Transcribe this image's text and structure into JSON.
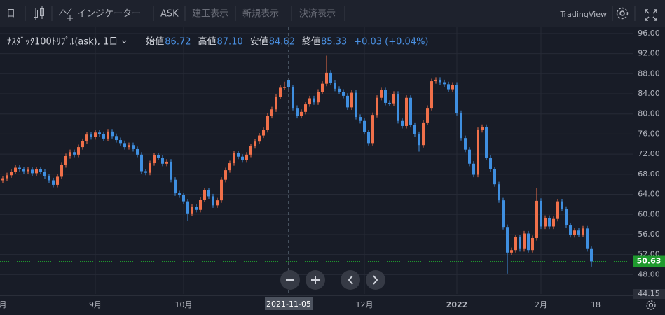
{
  "toolbar": {
    "interval": "日",
    "indicators": "インジケーター",
    "price_side": "ASK",
    "buttons": [
      "建玉表示",
      "新規表示",
      "決済表示"
    ],
    "brand": "TradingView"
  },
  "legend": {
    "symbol": "ﾅｽﾀﾞｯｸ100ﾄﾘﾌﾟﾙ(ask), 1日",
    "fields": [
      {
        "label": "始値",
        "value": "86.72"
      },
      {
        "label": "高値",
        "value": "87.10"
      },
      {
        "label": "安値",
        "value": "84.62"
      },
      {
        "label": "終値",
        "value": "85.33"
      }
    ],
    "change": "+0.03 (+0.04%)"
  },
  "chart_data": {
    "type": "candlestick",
    "up_color": "#f0704a",
    "down_color": "#3f8fe0",
    "grid": true,
    "ylim": [
      44.15,
      97.1
    ],
    "yticks": [
      {
        "value": 48,
        "label": "48.00"
      },
      {
        "value": 52,
        "label": "52.00"
      },
      {
        "value": 56,
        "label": "56.00"
      },
      {
        "value": 60,
        "label": "60.00"
      },
      {
        "value": 64,
        "label": "64.00"
      },
      {
        "value": 68,
        "label": "68.00"
      },
      {
        "value": 72,
        "label": "72.00"
      },
      {
        "value": 76,
        "label": "76.00"
      },
      {
        "value": 80,
        "label": "80.00"
      },
      {
        "value": 84,
        "label": "84.00"
      },
      {
        "value": 88,
        "label": "88.00"
      },
      {
        "value": 92,
        "label": "92.00"
      },
      {
        "value": 96,
        "label": "96.00"
      },
      {
        "value": 44.15,
        "label": "44.15"
      }
    ],
    "last_price": {
      "value": 50.63,
      "label": "50.63",
      "color": "#1f9a2e"
    },
    "categories": [
      "月",
      null,
      null,
      null,
      null,
      null,
      null,
      null,
      null,
      null,
      null,
      null,
      null,
      null,
      null,
      null,
      null,
      null,
      null,
      null,
      null,
      null,
      "9月",
      null,
      null,
      null,
      null,
      null,
      null,
      null,
      null,
      null,
      null,
      null,
      null,
      null,
      null,
      null,
      null,
      null,
      null,
      null,
      null,
      "10月",
      null,
      null,
      null,
      null,
      null,
      null,
      null,
      null,
      null,
      null,
      null,
      null,
      null,
      null,
      null,
      null,
      null,
      null,
      null,
      null,
      null,
      null,
      null,
      null,
      "2021-11-05",
      null,
      null,
      null,
      null,
      null,
      null,
      null,
      null,
      null,
      null,
      null,
      null,
      null,
      null,
      null,
      null,
      null,
      "12月",
      null,
      null,
      null,
      null,
      null,
      null,
      null,
      null,
      null,
      null,
      null,
      null,
      null,
      null,
      null,
      null,
      null,
      null,
      null,
      null,
      null,
      "2022",
      null,
      null,
      null,
      null,
      null,
      null,
      null,
      null,
      null,
      null,
      null,
      null,
      null,
      null,
      null,
      null,
      null,
      null,
      null,
      "2月",
      null,
      null,
      null,
      null,
      null,
      null,
      null,
      null,
      null,
      null,
      null,
      null,
      "18"
    ],
    "values": [
      [
        66.8,
        67.7,
        66.3,
        67.2
      ],
      [
        67.2,
        68.3,
        66.7,
        67.8
      ],
      [
        67.8,
        69.0,
        67.3,
        68.5
      ],
      [
        68.5,
        69.8,
        68.0,
        69.3
      ],
      [
        69.3,
        69.8,
        68.5,
        69.0
      ],
      [
        69.0,
        69.5,
        68.1,
        68.6
      ],
      [
        68.6,
        69.4,
        68.1,
        68.9
      ],
      [
        68.9,
        69.4,
        67.7,
        68.2
      ],
      [
        68.2,
        69.5,
        67.7,
        69.0
      ],
      [
        69.0,
        69.5,
        68.0,
        68.5
      ],
      [
        68.5,
        69.0,
        67.1,
        67.6
      ],
      [
        67.6,
        68.1,
        66.3,
        66.8
      ],
      [
        66.8,
        67.3,
        65.4,
        65.9
      ],
      [
        65.9,
        68.0,
        65.4,
        67.5
      ],
      [
        67.5,
        70.3,
        67.0,
        69.8
      ],
      [
        69.8,
        72.1,
        69.3,
        71.6
      ],
      [
        71.6,
        72.9,
        71.1,
        72.4
      ],
      [
        72.4,
        72.9,
        71.4,
        71.9
      ],
      [
        71.9,
        73.9,
        71.4,
        73.4
      ],
      [
        73.4,
        75.1,
        72.9,
        74.6
      ],
      [
        74.6,
        76.4,
        74.1,
        75.9
      ],
      [
        75.9,
        76.4,
        74.9,
        75.4
      ],
      [
        75.4,
        76.8,
        74.9,
        76.3
      ],
      [
        76.3,
        76.8,
        75.5,
        76.0
      ],
      [
        76.0,
        76.5,
        74.6,
        75.1
      ],
      [
        75.1,
        77.0,
        74.6,
        76.5
      ],
      [
        76.5,
        77.0,
        75.1,
        75.6
      ],
      [
        75.6,
        76.1,
        74.3,
        74.8
      ],
      [
        74.8,
        75.3,
        73.7,
        74.2
      ],
      [
        74.2,
        74.7,
        72.9,
        73.4
      ],
      [
        73.4,
        74.3,
        72.9,
        73.8
      ],
      [
        73.8,
        74.3,
        72.5,
        73.0
      ],
      [
        73.0,
        73.5,
        71.4,
        71.9
      ],
      [
        71.9,
        72.4,
        68.1,
        68.6
      ],
      [
        68.6,
        69.1,
        67.8,
        68.3
      ],
      [
        68.3,
        70.7,
        67.8,
        70.2
      ],
      [
        70.2,
        72.3,
        69.7,
        71.8
      ],
      [
        71.8,
        72.3,
        70.8,
        71.3
      ],
      [
        71.3,
        71.8,
        69.6,
        70.1
      ],
      [
        70.1,
        71.0,
        69.6,
        70.5
      ],
      [
        70.5,
        71.0,
        66.4,
        66.9
      ],
      [
        66.9,
        67.4,
        63.7,
        64.2
      ],
      [
        64.2,
        64.7,
        63.3,
        63.8
      ],
      [
        63.8,
        64.3,
        62.1,
        62.6
      ],
      [
        62.6,
        63.1,
        58.7,
        60.2
      ],
      [
        60.2,
        62.0,
        59.7,
        61.5
      ],
      [
        61.5,
        62.0,
        60.4,
        60.9
      ],
      [
        60.9,
        63.4,
        60.4,
        62.9
      ],
      [
        62.9,
        65.3,
        62.4,
        64.8
      ],
      [
        64.8,
        65.3,
        63.1,
        63.6
      ],
      [
        63.6,
        64.1,
        61.3,
        61.8
      ],
      [
        61.8,
        63.3,
        61.3,
        62.8
      ],
      [
        62.8,
        67.4,
        62.3,
        66.9
      ],
      [
        66.9,
        69.3,
        66.4,
        68.8
      ],
      [
        68.8,
        70.7,
        68.3,
        70.2
      ],
      [
        70.2,
        72.7,
        69.7,
        72.2
      ],
      [
        72.2,
        72.7,
        71.0,
        71.5
      ],
      [
        71.5,
        72.0,
        70.3,
        70.8
      ],
      [
        70.8,
        72.4,
        70.3,
        71.9
      ],
      [
        71.9,
        74.1,
        71.4,
        73.6
      ],
      [
        73.6,
        75.0,
        73.1,
        74.5
      ],
      [
        74.5,
        76.2,
        74.0,
        75.7
      ],
      [
        75.7,
        77.3,
        75.2,
        76.8
      ],
      [
        76.8,
        80.1,
        76.3,
        79.6
      ],
      [
        79.6,
        81.4,
        79.1,
        80.9
      ],
      [
        80.9,
        83.9,
        80.4,
        83.4
      ],
      [
        83.4,
        85.7,
        82.9,
        85.2
      ],
      [
        85.2,
        86.4,
        84.7,
        85.3
      ],
      [
        86.72,
        87.1,
        84.62,
        85.33
      ],
      [
        85.3,
        85.8,
        80.7,
        81.2
      ],
      [
        81.2,
        81.7,
        79.1,
        79.6
      ],
      [
        79.6,
        80.9,
        79.1,
        80.4
      ],
      [
        80.4,
        82.4,
        79.9,
        81.9
      ],
      [
        81.9,
        83.6,
        81.4,
        83.1
      ],
      [
        83.1,
        83.6,
        81.8,
        82.3
      ],
      [
        82.3,
        84.9,
        81.8,
        84.4
      ],
      [
        84.4,
        86.5,
        83.9,
        86.0
      ],
      [
        86.0,
        91.6,
        85.5,
        88.2
      ],
      [
        88.2,
        88.7,
        85.7,
        86.2
      ],
      [
        86.2,
        86.7,
        84.5,
        85.0
      ],
      [
        85.0,
        85.5,
        83.9,
        84.4
      ],
      [
        84.4,
        84.9,
        83.1,
        83.6
      ],
      [
        83.6,
        84.1,
        80.8,
        81.3
      ],
      [
        81.3,
        84.7,
        80.8,
        84.2
      ],
      [
        84.2,
        84.7,
        78.9,
        79.4
      ],
      [
        79.4,
        79.9,
        78.1,
        78.6
      ],
      [
        78.6,
        79.1,
        75.9,
        76.4
      ],
      [
        76.4,
        76.9,
        73.7,
        74.2
      ],
      [
        74.2,
        80.3,
        73.7,
        79.8
      ],
      [
        79.8,
        83.7,
        79.3,
        83.2
      ],
      [
        83.2,
        85.2,
        82.7,
        84.7
      ],
      [
        84.7,
        85.2,
        81.7,
        82.2
      ],
      [
        82.2,
        82.7,
        81.6,
        82.1
      ],
      [
        82.1,
        84.5,
        81.6,
        84.0
      ],
      [
        84.0,
        84.5,
        78.1,
        78.6
      ],
      [
        78.6,
        79.1,
        77.1,
        77.6
      ],
      [
        77.6,
        83.7,
        77.1,
        83.2
      ],
      [
        83.2,
        83.7,
        77.3,
        77.8
      ],
      [
        77.8,
        78.3,
        75.5,
        76.0
      ],
      [
        76.0,
        76.5,
        72.5,
        73.8
      ],
      [
        73.8,
        78.8,
        73.3,
        78.3
      ],
      [
        78.3,
        81.7,
        77.8,
        81.2
      ],
      [
        81.2,
        87.0,
        80.7,
        86.5
      ],
      [
        86.5,
        87.3,
        86.0,
        86.8
      ],
      [
        86.8,
        87.3,
        85.8,
        86.3
      ],
      [
        86.3,
        86.8,
        85.4,
        85.9
      ],
      [
        85.9,
        86.4,
        84.4,
        84.9
      ],
      [
        84.9,
        86.3,
        84.4,
        85.8
      ],
      [
        85.8,
        86.3,
        79.7,
        80.2
      ],
      [
        80.2,
        80.7,
        74.7,
        75.2
      ],
      [
        75.2,
        75.7,
        72.4,
        72.9
      ],
      [
        72.9,
        73.4,
        69.6,
        70.1
      ],
      [
        70.1,
        70.6,
        67.4,
        67.9
      ],
      [
        67.9,
        77.3,
        67.4,
        76.8
      ],
      [
        76.8,
        77.9,
        76.3,
        77.4
      ],
      [
        77.4,
        77.9,
        70.8,
        71.3
      ],
      [
        71.3,
        71.8,
        68.5,
        69.0
      ],
      [
        69.0,
        69.5,
        65.5,
        66.0
      ],
      [
        66.0,
        66.5,
        62.3,
        62.8
      ],
      [
        62.8,
        63.3,
        57.0,
        57.5
      ],
      [
        57.5,
        58.0,
        48.2,
        52.4
      ],
      [
        52.4,
        53.4,
        51.9,
        52.9
      ],
      [
        52.9,
        56.0,
        52.4,
        55.5
      ],
      [
        55.5,
        56.0,
        52.6,
        53.1
      ],
      [
        53.1,
        56.7,
        52.6,
        56.2
      ],
      [
        56.2,
        56.7,
        52.4,
        52.9
      ],
      [
        52.9,
        55.8,
        52.4,
        55.3
      ],
      [
        55.3,
        65.3,
        54.8,
        62.7
      ],
      [
        62.7,
        63.2,
        57.1,
        57.6
      ],
      [
        57.6,
        59.8,
        57.1,
        59.3
      ],
      [
        59.3,
        59.8,
        57.1,
        57.6
      ],
      [
        57.6,
        59.6,
        57.1,
        59.1
      ],
      [
        59.1,
        63.1,
        58.6,
        62.6
      ],
      [
        62.6,
        63.1,
        60.6,
        61.1
      ],
      [
        61.1,
        61.6,
        57.3,
        57.8
      ],
      [
        57.8,
        58.3,
        55.4,
        55.9
      ],
      [
        55.9,
        57.3,
        55.4,
        56.8
      ],
      [
        56.8,
        57.3,
        55.5,
        56.0
      ],
      [
        56.0,
        57.7,
        55.5,
        57.2
      ],
      [
        57.2,
        57.7,
        52.6,
        53.1
      ],
      [
        53.1,
        53.6,
        49.6,
        50.63
      ]
    ]
  }
}
